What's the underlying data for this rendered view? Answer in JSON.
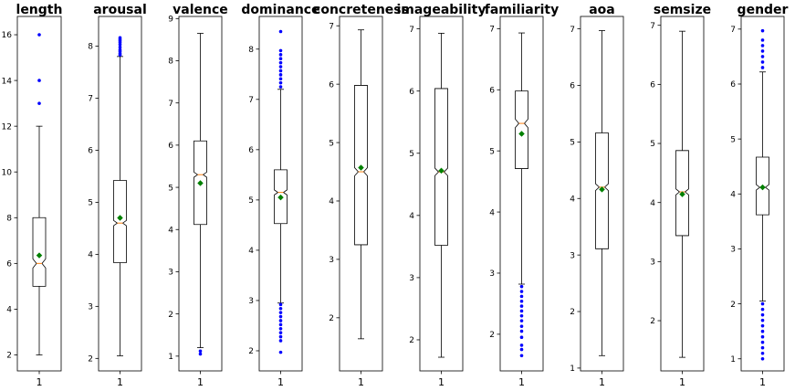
{
  "chart_data": [
    {
      "type": "box",
      "title": "length",
      "xticks": [
        "1"
      ],
      "ylim": [
        1.3,
        16.8
      ],
      "yticks": [
        2,
        4,
        6,
        8,
        10,
        12,
        14,
        16
      ],
      "box": {
        "whisker_low": 2,
        "q1": 5,
        "median": 6,
        "q3": 8,
        "whisker_high": 12,
        "mean": 6.35,
        "notch_low": 5.8,
        "notch_high": 6.2
      },
      "outliers": [
        13,
        14,
        16
      ]
    },
    {
      "type": "box",
      "title": "arousal",
      "xticks": [
        "1"
      ],
      "ylim": [
        1.76,
        8.57
      ],
      "yticks": [
        2,
        3,
        4,
        5,
        6,
        7,
        8
      ],
      "box": {
        "whisker_low": 2.05,
        "q1": 3.84,
        "median": 4.6,
        "q3": 5.42,
        "whisker_high": 7.8,
        "mean": 4.7,
        "notch_low": 4.55,
        "notch_high": 4.65
      },
      "outliers": [
        7.83,
        7.86,
        7.9,
        7.93,
        7.98,
        8.03,
        8.07,
        8.1,
        8.13,
        8.16
      ]
    },
    {
      "type": "box",
      "title": "valence",
      "xticks": [
        "1"
      ],
      "ylim": [
        0.65,
        9.05
      ],
      "yticks": [
        1,
        2,
        3,
        4,
        5,
        6,
        7,
        8,
        9
      ],
      "box": {
        "whisker_low": 1.2,
        "q1": 4.12,
        "median": 5.3,
        "q3": 6.1,
        "whisker_high": 8.65,
        "mean": 5.1,
        "notch_low": 5.24,
        "notch_high": 5.36
      },
      "outliers": [
        1.05,
        1.12
      ]
    },
    {
      "type": "box",
      "title": "dominance",
      "xticks": [
        "1"
      ],
      "ylim": [
        1.6,
        8.65
      ],
      "yticks": [
        2,
        3,
        4,
        5,
        6,
        7,
        8
      ],
      "box": {
        "whisker_low": 2.95,
        "q1": 4.53,
        "median": 5.15,
        "q3": 5.6,
        "whisker_high": 7.2,
        "mean": 5.05,
        "notch_low": 5.1,
        "notch_high": 5.2
      },
      "outliers": [
        1.97,
        2.2,
        2.28,
        2.36,
        2.44,
        2.52,
        2.6,
        2.68,
        2.76,
        2.84,
        2.92,
        7.25,
        7.33,
        7.41,
        7.49,
        7.57,
        7.65,
        7.73,
        7.81,
        7.89,
        7.97,
        8.35
      ]
    },
    {
      "type": "box",
      "title": "concreteness",
      "xticks": [
        "1"
      ],
      "ylim": [
        1.09,
        7.16
      ],
      "yticks": [
        2,
        3,
        4,
        5,
        6,
        7
      ],
      "box": {
        "whisker_low": 1.64,
        "q1": 3.25,
        "median": 4.5,
        "q3": 5.98,
        "whisker_high": 6.93,
        "mean": 4.57,
        "notch_low": 4.43,
        "notch_high": 4.57
      },
      "outliers": []
    },
    {
      "type": "box",
      "title": "imageability",
      "xticks": [
        "1"
      ],
      "ylim": [
        1.5,
        7.2
      ],
      "yticks": [
        2,
        3,
        4,
        5,
        6,
        7
      ],
      "box": {
        "whisker_low": 1.72,
        "q1": 3.52,
        "median": 4.7,
        "q3": 6.04,
        "whisker_high": 6.93,
        "mean": 4.72,
        "notch_low": 4.64,
        "notch_high": 4.76
      },
      "outliers": []
    },
    {
      "type": "box",
      "title": "familiarity",
      "xticks": [
        "1"
      ],
      "ylim": [
        1.4,
        7.2
      ],
      "yticks": [
        2,
        3,
        4,
        5,
        6,
        7
      ],
      "box": {
        "whisker_low": 2.82,
        "q1": 4.71,
        "median": 5.45,
        "q3": 5.98,
        "whisker_high": 6.93,
        "mean": 5.28,
        "notch_low": 5.38,
        "notch_high": 5.52
      },
      "outliers": [
        1.65,
        1.75,
        1.82,
        1.95,
        2.05,
        2.13,
        2.22,
        2.3,
        2.38,
        2.46,
        2.54,
        2.62,
        2.7,
        2.78
      ]
    },
    {
      "type": "box",
      "title": "aoa",
      "xticks": [
        "1"
      ],
      "ylim": [
        0.95,
        7.22
      ],
      "yticks": [
        1,
        2,
        3,
        4,
        5,
        6,
        7
      ],
      "box": {
        "whisker_low": 1.22,
        "q1": 3.11,
        "median": 4.2,
        "q3": 5.16,
        "whisker_high": 6.97,
        "mean": 4.16,
        "notch_low": 4.14,
        "notch_high": 4.26
      },
      "outliers": []
    },
    {
      "type": "box",
      "title": "semsize",
      "xticks": [
        "1"
      ],
      "ylim": [
        1.15,
        7.15
      ],
      "yticks": [
        2,
        3,
        4,
        5,
        6,
        7
      ],
      "box": {
        "whisker_low": 1.38,
        "q1": 3.44,
        "median": 4.18,
        "q3": 4.88,
        "whisker_high": 6.9,
        "mean": 4.14,
        "notch_low": 4.13,
        "notch_high": 4.23
      },
      "outliers": []
    },
    {
      "type": "box",
      "title": "gender",
      "xticks": [
        "1"
      ],
      "ylim": [
        0.78,
        7.23
      ],
      "yticks": [
        1,
        2,
        3,
        4,
        5,
        6,
        7
      ],
      "box": {
        "whisker_low": 2.05,
        "q1": 3.62,
        "median": 4.12,
        "q3": 4.67,
        "whisker_high": 6.22,
        "mean": 4.12,
        "notch_low": 4.07,
        "notch_high": 4.17
      },
      "outliers": [
        1.0,
        1.1,
        1.2,
        1.3,
        1.4,
        1.5,
        1.6,
        1.7,
        1.8,
        1.9,
        2.0,
        6.3,
        6.4,
        6.5,
        6.6,
        6.7,
        6.8,
        6.97
      ]
    }
  ],
  "style": {
    "outlier_color": "#0000ff",
    "mean_color": "#008000",
    "median_color": "#ff7f0e",
    "line_color": "#000000"
  }
}
